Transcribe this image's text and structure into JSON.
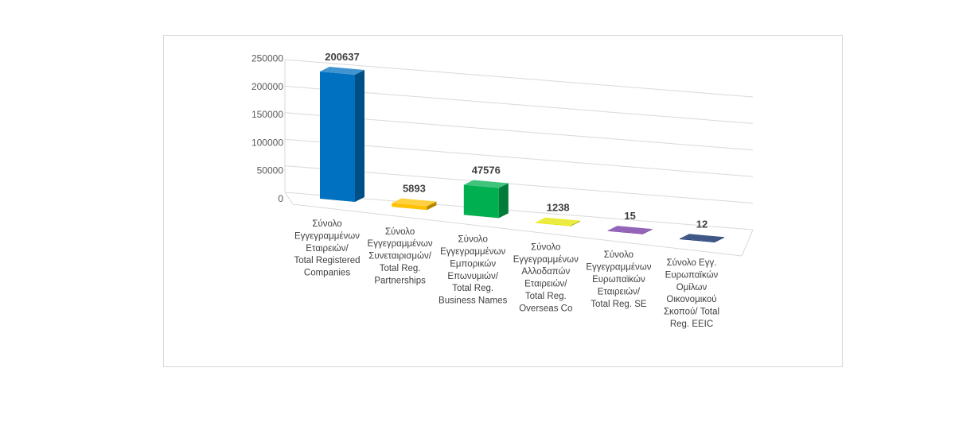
{
  "chart_data": {
    "type": "bar",
    "style": "3d-column",
    "title": "",
    "xlabel": "",
    "ylabel": "",
    "ylim": [
      0,
      250000
    ],
    "yticks": [
      0,
      50000,
      100000,
      150000,
      200000,
      250000
    ],
    "grid": true,
    "legend": "none",
    "categories": [
      [
        "Σύνολο",
        "Εγγεγραμμένων",
        "Εταιρειών/",
        "Total Registered",
        "Companies"
      ],
      [
        "Σύνολο",
        "Εγγεγραμμένων",
        "Συνεταιρισμών/",
        "Total Reg.",
        "Partnerships"
      ],
      [
        "Σύνολο",
        "Εγγεγραμμένων",
        "Εμπορικών",
        "Επωνυμιών/",
        "Total Reg.",
        "Business Names"
      ],
      [
        "Σύνολο",
        "Εγγεγραμμένων",
        "Αλλοδαπών",
        "Εταιρειών/",
        "Total Reg.",
        "Overseas Co"
      ],
      [
        "Σύνολο",
        "Εγγεγραμμένων",
        "Ευρωπαϊκών",
        "Εταιρειών/",
        "Total Reg. SE"
      ],
      [
        "Σύνολο Εγγ.",
        "Ευρωπαϊκών",
        "Ομίλων",
        "Οικονομικού",
        "Σκοπού/ Total",
        "Reg. EEIC"
      ]
    ],
    "values": [
      200637,
      5893,
      47576,
      1238,
      15,
      12
    ],
    "data_labels": [
      "200637",
      "5893",
      "47576",
      "1238",
      "15",
      "12"
    ],
    "colors": [
      "#0070c0",
      "#ffc000",
      "#00b050",
      "#e6e600",
      "#7030a0",
      "#002060"
    ]
  }
}
